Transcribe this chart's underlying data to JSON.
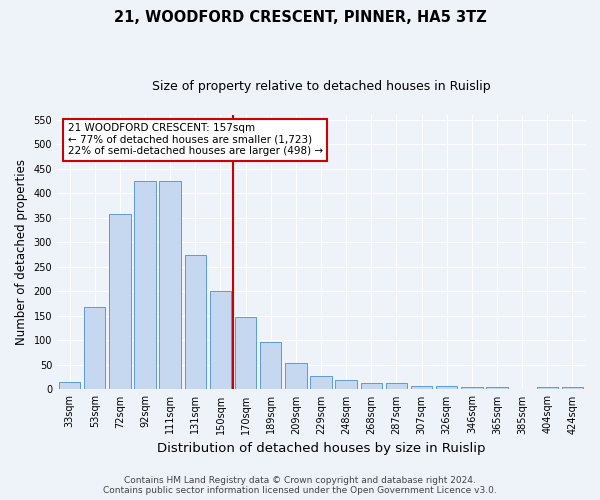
{
  "title": "21, WOODFORD CRESCENT, PINNER, HA5 3TZ",
  "subtitle": "Size of property relative to detached houses in Ruislip",
  "xlabel": "Distribution of detached houses by size in Ruislip",
  "ylabel": "Number of detached properties",
  "categories": [
    "33sqm",
    "53sqm",
    "72sqm",
    "92sqm",
    "111sqm",
    "131sqm",
    "150sqm",
    "170sqm",
    "189sqm",
    "209sqm",
    "229sqm",
    "248sqm",
    "268sqm",
    "287sqm",
    "307sqm",
    "326sqm",
    "346sqm",
    "365sqm",
    "385sqm",
    "404sqm",
    "424sqm"
  ],
  "values": [
    15,
    168,
    358,
    425,
    425,
    275,
    200,
    148,
    96,
    54,
    28,
    20,
    14,
    14,
    7,
    6,
    5,
    5,
    1,
    5,
    5
  ],
  "bar_color": "#c5d8f0",
  "bar_edge_color": "#5b9bd5",
  "property_line_color": "#cc0000",
  "annotation_text": "21 WOODFORD CRESCENT: 157sqm\n← 77% of detached houses are smaller (1,723)\n22% of semi-detached houses are larger (498) →",
  "annotation_box_color": "#ffffff",
  "annotation_box_edge": "#cc0000",
  "ylim": [
    0,
    560
  ],
  "yticks": [
    0,
    50,
    100,
    150,
    200,
    250,
    300,
    350,
    400,
    450,
    500,
    550
  ],
  "background_color": "#eef2f9",
  "grid_color": "#ffffff",
  "footer_line1": "Contains HM Land Registry data © Crown copyright and database right 2024.",
  "footer_line2": "Contains public sector information licensed under the Open Government Licence v3.0.",
  "title_fontsize": 10.5,
  "subtitle_fontsize": 9,
  "xlabel_fontsize": 9.5,
  "ylabel_fontsize": 8.5,
  "tick_fontsize": 7,
  "annotation_fontsize": 7.5,
  "footer_fontsize": 6.5
}
